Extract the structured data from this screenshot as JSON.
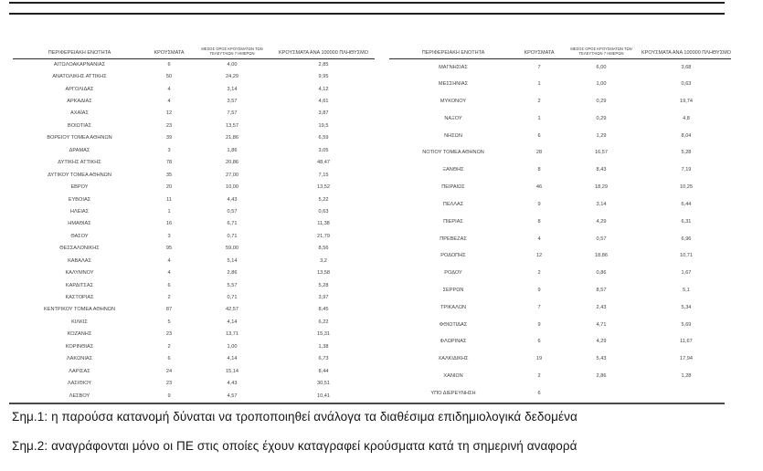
{
  "table": {
    "headers": {
      "region": "ΠΕΡΙΦΕΡΕΙΑΚΗ ΕΝΟΤΗΤΑ",
      "cases": "ΚΡΟΥΣΜΑΤΑ",
      "avg7_line1": "ΜΕΣΟΣ ΟΡΟΣ ΚΡΟΥΣΜΑΤΩΝ ΤΩΝ",
      "avg7_line2": "ΤΕΛΕΥΤΑΙΩΝ 7 ΗΜΕΡΩΝ",
      "per100k": "ΚΡΟΥΣΜΑΤΑ ΑΝΑ 100000 ΠΛΗΘΥΣΜΟ"
    },
    "left_rows": [
      [
        "ΑΙΤΩΛΟΑΚΑΡΝΑΝΙΑΣ",
        "6",
        "4,00",
        "2,85"
      ],
      [
        "ΑΝΑΤΟΛΙΚΗΣ ΑΤΤΙΚΗΣ",
        "50",
        "24,29",
        "9,95"
      ],
      [
        "ΑΡΓΟΛΙΔΑΣ",
        "4",
        "3,14",
        "4,12"
      ],
      [
        "ΑΡΚΑΔΙΑΣ",
        "4",
        "3,57",
        "4,61"
      ],
      [
        "ΑΧΑΪΑΣ",
        "12",
        "7,57",
        "3,87"
      ],
      [
        "ΒΟΙΩΤΙΑΣ",
        "23",
        "13,57",
        "19,5"
      ],
      [
        "ΒΟΡΕΙΟΥ ΤΟΜΕΑ ΑΘΗΝΩΝ",
        "39",
        "21,86",
        "6,59"
      ],
      [
        "ΔΡΑΜΑΣ",
        "3",
        "1,86",
        "3,05"
      ],
      [
        "ΔΥΤΙΚΗΣ ΑΤΤΙΚΗΣ",
        "78",
        "20,86",
        "48,47"
      ],
      [
        "ΔΥΤΙΚΟΥ ΤΟΜΕΑ ΑΘΗΝΩΝ",
        "35",
        "27,00",
        "7,15"
      ],
      [
        "ΕΒΡΟΥ",
        "20",
        "10,00",
        "13,52"
      ],
      [
        "ΕΥΒΟΙΑΣ",
        "11",
        "4,43",
        "5,22"
      ],
      [
        "ΗΛΕΙΑΣ",
        "1",
        "0,57",
        "0,63"
      ],
      [
        "ΗΜΑΘΙΑΣ",
        "16",
        "6,71",
        "11,38"
      ],
      [
        "ΘΑΣΟΥ",
        "3",
        "0,71",
        "21,79"
      ],
      [
        "ΘΕΣΣΑΛΟΝΙΚΗΣ",
        "95",
        "59,00",
        "8,56"
      ],
      [
        "ΚΑΒΑΛΑΣ",
        "4",
        "5,14",
        "3,2"
      ],
      [
        "ΚΑΛΥΜΝΟΥ",
        "4",
        "2,86",
        "13,58"
      ],
      [
        "ΚΑΡΔΙΤΣΑΣ",
        "6",
        "5,57",
        "5,28"
      ],
      [
        "ΚΑΣΤΟΡΙΑΣ",
        "2",
        "0,71",
        "3,97"
      ],
      [
        "ΚΕΝΤΡΙΚΟΥ ΤΟΜΕΑ ΑΘΗΝΩΝ",
        "87",
        "42,57",
        "8,45"
      ],
      [
        "ΚΙΛΚΙΣ",
        "5",
        "4,14",
        "6,22"
      ],
      [
        "ΚΟΖΑΝΗΣ",
        "23",
        "13,71",
        "15,31"
      ],
      [
        "ΚΟΡΙΝΘΙΑΣ",
        "2",
        "1,00",
        "1,38"
      ],
      [
        "ΛΑΚΩΝΙΑΣ",
        "6",
        "4,14",
        "6,73"
      ],
      [
        "ΛΑΡΙΣΑΣ",
        "24",
        "15,14",
        "8,44"
      ],
      [
        "ΛΑΣΙΘΙΟΥ",
        "23",
        "4,43",
        "30,51"
      ],
      [
        "ΛΕΣΒΟΥ",
        "9",
        "4,57",
        "10,41"
      ]
    ],
    "right_rows": [
      [
        "ΜΑΓΝΗΣΙΑΣ",
        "7",
        "6,00",
        "3,68"
      ],
      [
        "ΜΕΣΣΗΝΙΑΣ",
        "1",
        "1,00",
        "0,63"
      ],
      [
        "ΜΥΚΟΝΟΥ",
        "2",
        "0,29",
        "19,74"
      ],
      [
        "ΝΑΞΟΥ",
        "1",
        "0,29",
        "4,8"
      ],
      [
        "ΝΗΣΩΝ",
        "6",
        "1,29",
        "8,04"
      ],
      [
        "ΝΟΤΙΟΥ ΤΟΜΕΑ ΑΘΗΝΩΝ",
        "28",
        "16,57",
        "5,28"
      ],
      [
        "ΞΑΝΘΗΣ",
        "8",
        "8,43",
        "7,19"
      ],
      [
        "ΠΕΙΡΑΙΩΣ",
        "46",
        "18,29",
        "10,25"
      ],
      [
        "ΠΕΛΛΑΣ",
        "9",
        "3,14",
        "6,44"
      ],
      [
        "ΠΙΕΡΙΑΣ",
        "8",
        "4,29",
        "6,31"
      ],
      [
        "ΠΡΕΒΕΖΑΣ",
        "4",
        "0,57",
        "6,96"
      ],
      [
        "ΡΟΔΟΠΗΣ",
        "12",
        "18,86",
        "10,71"
      ],
      [
        "ΡΟΔΟΥ",
        "2",
        "0,86",
        "1,67"
      ],
      [
        "ΣΕΡΡΩΝ",
        "9",
        "8,57",
        "5,1"
      ],
      [
        "ΤΡΙΚΑΛΩΝ",
        "7",
        "2,43",
        "5,34"
      ],
      [
        "ΦΘΙΩΤΙΔΑΣ",
        "9",
        "4,71",
        "5,69"
      ],
      [
        "ΦΛΩΡΙΝΑΣ",
        "6",
        "4,29",
        "11,67"
      ],
      [
        "ΧΑΛΚΙΔΙΚΗΣ",
        "19",
        "5,43",
        "17,94"
      ],
      [
        "ΧΑΝΙΩΝ",
        "2",
        "2,86",
        "1,28"
      ],
      [
        "ΥΠΟ ΔΙΕΡΕΥΝΗΣΗ",
        "6",
        "",
        ""
      ]
    ]
  },
  "notes": {
    "note1": "Σημ.1: η παρούσα κατανομή δύναται να τροποποιηθεί ανάλογα τα διαθέσιμα επιδημιολογικά δεδομένα",
    "note2": "Σημ.2: αναγράφονται μόνο οι ΠΕ στις οποίες έχουν καταγραφεί κρούσματα κατά τη σημερινή αναφορά"
  }
}
